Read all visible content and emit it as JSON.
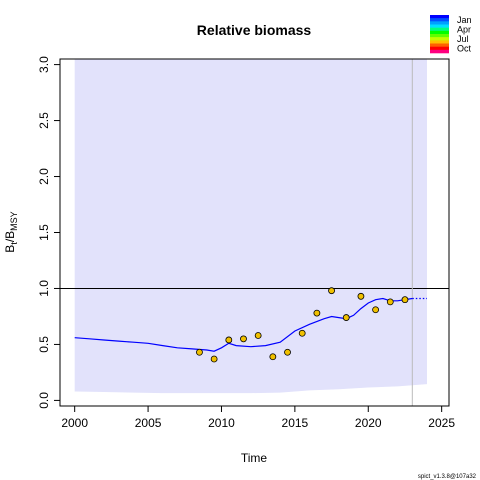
{
  "chart_data": {
    "type": "line",
    "title": "Relative biomass",
    "xlabel": "Time",
    "ylabel": {
      "main": "B",
      "sub1": "t",
      "sep": "/B",
      "sub2": "MSY"
    },
    "xlim": [
      1999,
      2025.5
    ],
    "ylim": [
      -0.05,
      3.05
    ],
    "x_ticks": [
      2000,
      2005,
      2010,
      2015,
      2020,
      2025
    ],
    "x_tick_labels": [
      "2000",
      "2005",
      "2010",
      "2015",
      "2020",
      "2025"
    ],
    "y_ticks": [
      0.0,
      0.5,
      1.0,
      1.5,
      2.0,
      2.5,
      3.0
    ],
    "y_tick_labels": [
      "0.0",
      "0.5",
      "1.0",
      "1.5",
      "2.0",
      "2.5",
      "3.0"
    ],
    "reference_line": {
      "y": 1.0,
      "color": "#000000"
    },
    "last_data_line": {
      "x": 2023.0,
      "color": "#bbbbbb"
    },
    "confidence_band": {
      "color": "#e2e2fb",
      "x": [
        2000,
        2002,
        2004,
        2006,
        2008,
        2010,
        2012,
        2014,
        2016,
        2018,
        2020,
        2022,
        2024
      ],
      "lower": [
        0.08,
        0.075,
        0.07,
        0.065,
        0.065,
        0.065,
        0.065,
        0.07,
        0.09,
        0.1,
        0.115,
        0.125,
        0.145
      ],
      "upper": [
        3.05,
        3.05,
        3.05,
        3.05,
        3.05,
        3.05,
        3.05,
        3.05,
        3.05,
        3.05,
        3.05,
        3.05,
        3.05
      ]
    },
    "series": [
      {
        "style": "solid",
        "color": "#0000ff",
        "x": [
          2000,
          2001,
          2002,
          2003,
          2004,
          2005,
          2006,
          2007,
          2008,
          2009,
          2009.5,
          2010,
          2010.5,
          2011,
          2012,
          2013,
          2014,
          2015,
          2016,
          2017,
          2017.5,
          2018,
          2018.5,
          2019,
          2019.5,
          2020,
          2020.5,
          2021,
          2021.5,
          2022,
          2023
        ],
        "y": [
          0.56,
          0.55,
          0.54,
          0.53,
          0.52,
          0.51,
          0.49,
          0.47,
          0.46,
          0.45,
          0.44,
          0.47,
          0.51,
          0.49,
          0.48,
          0.49,
          0.52,
          0.62,
          0.68,
          0.73,
          0.75,
          0.74,
          0.73,
          0.76,
          0.82,
          0.87,
          0.9,
          0.91,
          0.89,
          0.89,
          0.91
        ]
      },
      {
        "style": "dotted",
        "color": "#0000ff",
        "x": [
          2023,
          2024
        ],
        "y": [
          0.91,
          0.91
        ]
      }
    ],
    "observations": {
      "fill": "#f0c000",
      "stroke": "#000000",
      "x": [
        2008.5,
        2009.5,
        2010.5,
        2011.5,
        2012.5,
        2013.5,
        2014.5,
        2015.5,
        2016.5,
        2017.5,
        2018.5,
        2019.5,
        2020.5,
        2021.5,
        2022.5
      ],
      "y": [
        0.43,
        0.37,
        0.54,
        0.55,
        0.58,
        0.39,
        0.43,
        0.6,
        0.78,
        0.98,
        0.74,
        0.93,
        0.81,
        0.88,
        0.9
      ]
    },
    "season_legend": {
      "labels": [
        "Jan",
        "Apr",
        "Jul",
        "Oct"
      ],
      "colors": [
        "#0000ff",
        "#0050ff",
        "#00a0ff",
        "#00e0ff",
        "#00ff80",
        "#00ff00",
        "#60ff00",
        "#c0ff00",
        "#ffc000",
        "#ff6000",
        "#ff0000",
        "#ff0080"
      ]
    },
    "footer": "spict_v1.3.8@107a32"
  }
}
